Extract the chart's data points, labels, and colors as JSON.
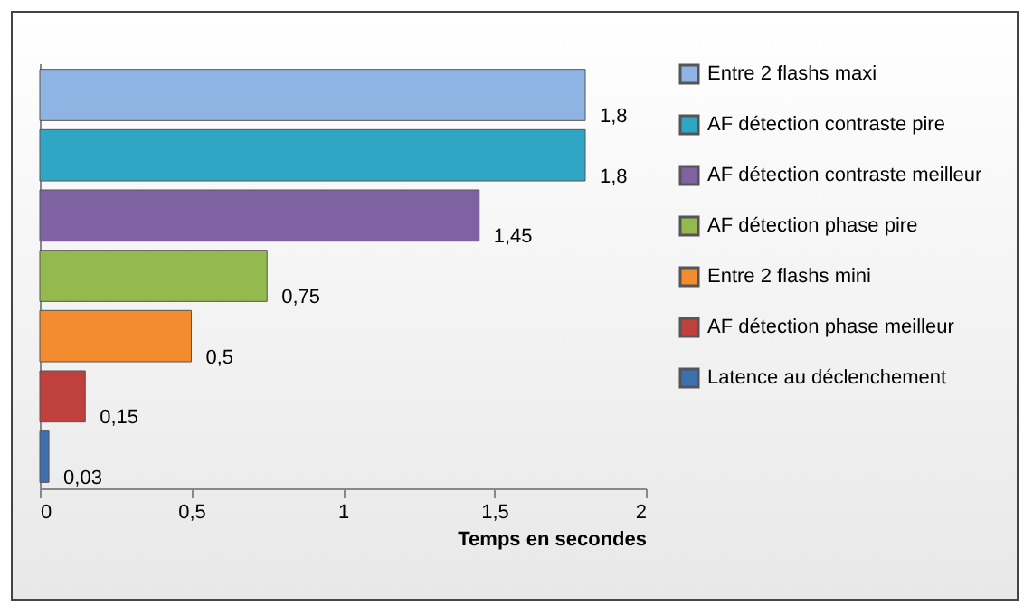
{
  "chart_data": {
    "type": "bar",
    "orientation": "horizontal",
    "categories": [
      null,
      null,
      null,
      null,
      null,
      null,
      null
    ],
    "series": [
      {
        "name": "Entre 2 flashs maxi",
        "color": "#8eb4e3",
        "values": [
          1.8,
          null,
          null,
          null,
          null,
          null,
          null
        ],
        "value_labels": [
          "1,8",
          null,
          null,
          null,
          null,
          null,
          null
        ]
      },
      {
        "name": "AF détection contraste pire",
        "color": "#31a6c4",
        "values": [
          null,
          1.8,
          null,
          null,
          null,
          null,
          null
        ],
        "value_labels": [
          null,
          "1,8",
          null,
          null,
          null,
          null,
          null
        ]
      },
      {
        "name": "AF détection contraste meilleur",
        "color": "#7f62a1",
        "values": [
          null,
          null,
          1.45,
          null,
          null,
          null,
          null
        ],
        "value_labels": [
          null,
          null,
          "1,45",
          null,
          null,
          null,
          null
        ]
      },
      {
        "name": "AF détection phase pire",
        "color": "#94b94f",
        "values": [
          null,
          null,
          null,
          0.75,
          null,
          null,
          null
        ],
        "value_labels": [
          null,
          null,
          null,
          "0,75",
          null,
          null,
          null
        ]
      },
      {
        "name": "Entre 2 flashs mini",
        "color": "#f38b2f",
        "values": [
          null,
          null,
          null,
          null,
          0.5,
          null,
          null
        ],
        "value_labels": [
          null,
          null,
          null,
          null,
          "0,5",
          null,
          null
        ]
      },
      {
        "name": "AF détection phase meilleur",
        "color": "#c0403d",
        "values": [
          null,
          null,
          null,
          null,
          null,
          0.15,
          null
        ],
        "value_labels": [
          null,
          null,
          null,
          null,
          null,
          "0,15",
          null
        ]
      },
      {
        "name": "Latence au déclenchement",
        "color": "#3e6fae",
        "values": [
          null,
          null,
          null,
          null,
          null,
          null,
          0.03
        ],
        "value_labels": [
          null,
          null,
          null,
          null,
          null,
          null,
          "0,03"
        ]
      }
    ],
    "xlabel": "Temps en secondes",
    "xlim": [
      0,
      2
    ],
    "xticks": [
      0,
      {
        "value": 0.5,
        "label": "0,5"
      },
      1,
      {
        "value": 1.5,
        "label": "1,5"
      },
      2
    ],
    "tick_labels": "x",
    "legend": "right",
    "grid": false
  }
}
